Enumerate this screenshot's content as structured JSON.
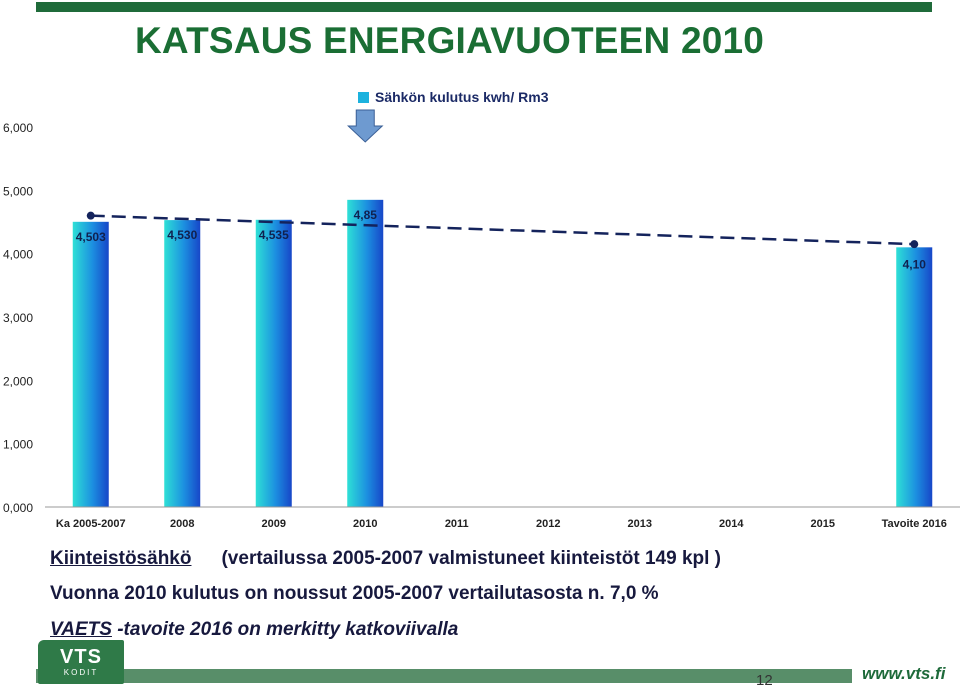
{
  "title": "KATSAUS ENERGIAVUOTEEN 2010",
  "notes": {
    "line1_keyword": "Kiinteistösähkö",
    "line1_rest": "(vertailussa 2005-2007 valmistuneet kiinteistöt 149 kpl )",
    "line2": "Vuonna 2010 kulutus on noussut  2005-2007 vertailutasosta n. 7,0 %",
    "line3_keyword": "VAETS",
    "line3_rest": " -tavoite 2016 on merkitty katkoviivalla"
  },
  "footer": {
    "logo_main": "VTS",
    "logo_sub": "KODIT",
    "page_number": "12",
    "url": "www.vts.fi"
  },
  "colors": {
    "title": "#1a6e34",
    "bar_light": "#2ee0d6",
    "bar_dark": "#1746c8",
    "dashed_line": "#14235c",
    "arrow": "#6e9ad0"
  },
  "chart_data": {
    "type": "bar",
    "legend": "Sähkön kulutus kwh/ Rm3",
    "legend_position": "top",
    "categories": [
      "Ka 2005-2007",
      "2008",
      "2009",
      "2010",
      "2011",
      "2012",
      "2013",
      "2014",
      "2015",
      "Tavoite 2016"
    ],
    "series": [
      {
        "name": "Sähkön kulutus kwh/ Rm3",
        "values": [
          4.503,
          4.53,
          4.535,
          4.85,
          null,
          null,
          null,
          null,
          null,
          4.1
        ],
        "labels": [
          "4,503",
          "4,530",
          "4,535",
          "4,85",
          "",
          "",
          "",
          "",
          "",
          "4,10"
        ]
      }
    ],
    "target_line": {
      "from_category": "Ka 2005-2007",
      "from_value": 4.6,
      "to_category": "Tavoite 2016",
      "to_value": 4.15,
      "style": "dashed"
    },
    "highlight_category": "2010",
    "ylim": [
      0,
      6
    ],
    "yticks": [
      "0,000",
      "1,000",
      "2,000",
      "3,000",
      "4,000",
      "5,000",
      "6,000"
    ]
  }
}
